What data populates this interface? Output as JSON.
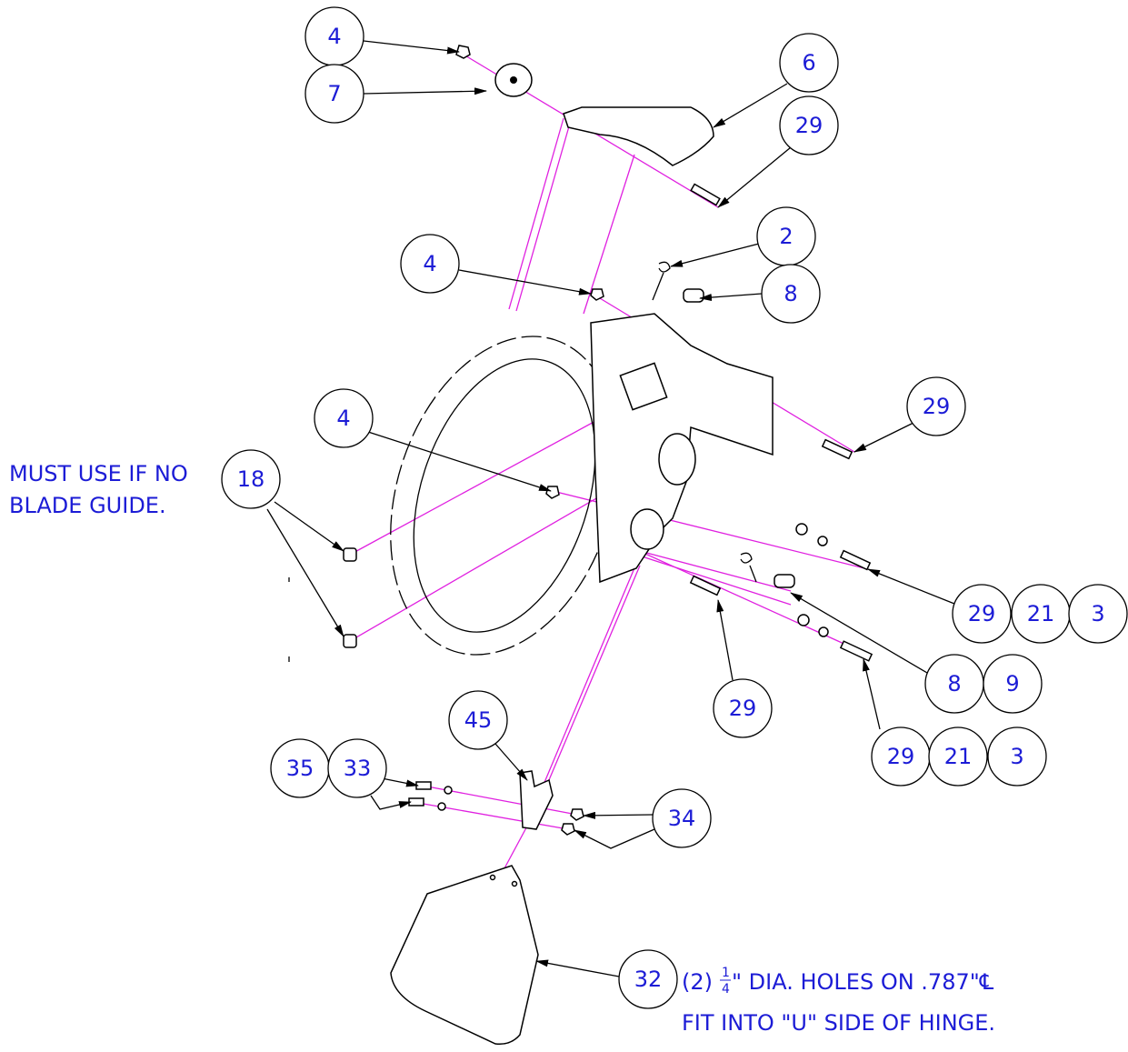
{
  "balloons": [
    "4",
    "7",
    "6",
    "29",
    "2",
    "4",
    "8",
    "29",
    "4",
    "18",
    "29",
    "21",
    "3",
    "8",
    "9",
    "29",
    "29",
    "21",
    "3",
    "45",
    "35",
    "33",
    "34",
    "32"
  ],
  "notes": {
    "blade_guide": [
      "MUST USE IF NO",
      "BLADE GUIDE."
    ],
    "holes": {
      "count": "(2)",
      "numerator": "1",
      "denominator": "4",
      "text": "\" DIA. HOLES ON .787\"℄"
    },
    "hinge": "FIT INTO \"U\" SIDE OF HINGE."
  }
}
